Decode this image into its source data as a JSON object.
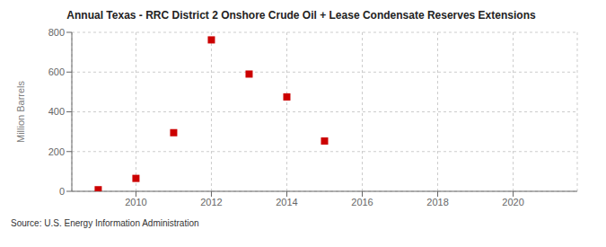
{
  "chart_data": {
    "type": "scatter",
    "title": "Annual Texas - RRC District 2 Onshore Crude Oil + Lease Condensate Reserves Extensions",
    "ylabel": "Million Barrels",
    "annotations": [
      "Source: U.S. Energy Information Administration"
    ],
    "x": [
      2009,
      2010,
      2011,
      2012,
      2013,
      2014,
      2015
    ],
    "values": [
      8,
      65,
      295,
      762,
      590,
      475,
      253
    ],
    "color": "#cc0000",
    "marker": "square",
    "xlim": [
      2008.3,
      2021.7
    ],
    "ylim": [
      0,
      800
    ],
    "xticks": [
      2010,
      2012,
      2014,
      2016,
      2018,
      2020
    ],
    "yticks": [
      0,
      200,
      400,
      600,
      800
    ],
    "grid": true
  }
}
